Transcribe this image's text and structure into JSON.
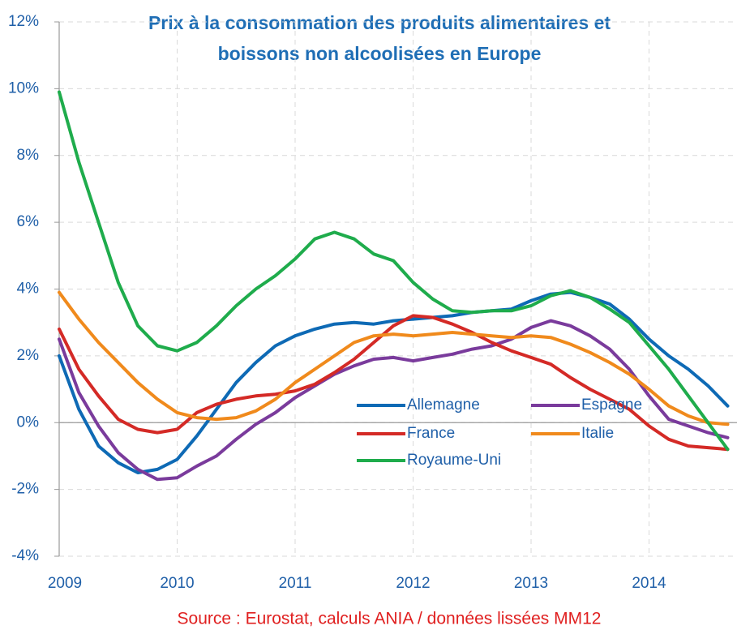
{
  "chart_data": {
    "type": "line",
    "title": [
      "Prix à la consommation des produits alimentaires et",
      "boissons non alcoolisées en Europe"
    ],
    "source": "Source : Eurostat, calculs ANIA / données lissées MM12",
    "x": [
      2009,
      2009.167,
      2009.333,
      2009.5,
      2009.667,
      2009.833,
      2010,
      2010.167,
      2010.333,
      2010.5,
      2010.667,
      2010.833,
      2011,
      2011.167,
      2011.333,
      2011.5,
      2011.667,
      2011.833,
      2012,
      2012.167,
      2012.333,
      2012.5,
      2012.667,
      2012.833,
      2013,
      2013.167,
      2013.333,
      2013.5,
      2013.667,
      2013.833,
      2014,
      2014.167,
      2014.333,
      2014.5,
      2014.667
    ],
    "series": [
      {
        "name": "Allemagne",
        "color": "#0e6ab5",
        "values": [
          2.0,
          0.4,
          -0.7,
          -1.2,
          -1.5,
          -1.4,
          -1.1,
          -0.4,
          0.4,
          1.2,
          1.8,
          2.3,
          2.6,
          2.8,
          2.95,
          3.0,
          2.95,
          3.05,
          3.1,
          3.15,
          3.2,
          3.3,
          3.35,
          3.4,
          3.65,
          3.85,
          3.9,
          3.75,
          3.55,
          3.1,
          2.5,
          2.0,
          1.6,
          1.1,
          0.5
        ]
      },
      {
        "name": "Espagne",
        "color": "#7a3b9c",
        "values": [
          2.5,
          0.9,
          -0.1,
          -0.9,
          -1.4,
          -1.7,
          -1.65,
          -1.3,
          -1.0,
          -0.5,
          -0.05,
          0.3,
          0.75,
          1.1,
          1.45,
          1.7,
          1.9,
          1.95,
          1.85,
          1.95,
          2.05,
          2.2,
          2.3,
          2.5,
          2.85,
          3.05,
          2.9,
          2.6,
          2.2,
          1.6,
          0.8,
          0.1,
          -0.1,
          -0.3,
          -0.45
        ]
      },
      {
        "name": "France",
        "color": "#d42a26",
        "values": [
          2.8,
          1.6,
          0.8,
          0.1,
          -0.2,
          -0.3,
          -0.2,
          0.3,
          0.55,
          0.7,
          0.8,
          0.85,
          0.95,
          1.15,
          1.5,
          1.9,
          2.4,
          2.9,
          3.2,
          3.15,
          2.95,
          2.7,
          2.4,
          2.15,
          1.95,
          1.75,
          1.35,
          1.0,
          0.7,
          0.4,
          -0.1,
          -0.5,
          -0.7,
          -0.75,
          -0.8
        ]
      },
      {
        "name": "Italie",
        "color": "#f08a1c",
        "values": [
          3.9,
          3.1,
          2.4,
          1.8,
          1.2,
          0.7,
          0.3,
          0.15,
          0.1,
          0.15,
          0.35,
          0.7,
          1.2,
          1.6,
          2.0,
          2.4,
          2.6,
          2.65,
          2.6,
          2.65,
          2.7,
          2.65,
          2.6,
          2.55,
          2.6,
          2.55,
          2.35,
          2.1,
          1.8,
          1.45,
          1.0,
          0.5,
          0.2,
          0.0,
          -0.05
        ]
      },
      {
        "name": "Royaume-Uni",
        "color": "#1fac4c",
        "values": [
          9.9,
          7.8,
          6.0,
          4.2,
          2.9,
          2.3,
          2.15,
          2.4,
          2.9,
          3.5,
          4.0,
          4.4,
          4.9,
          5.5,
          5.7,
          5.5,
          5.05,
          4.85,
          4.2,
          3.7,
          3.35,
          3.3,
          3.35,
          3.35,
          3.5,
          3.8,
          3.95,
          3.75,
          3.4,
          3.0,
          2.3,
          1.6,
          0.8,
          0.0,
          -0.8
        ]
      }
    ],
    "xlim": [
      2009,
      2014.75
    ],
    "xticks": [
      2009,
      2010,
      2011,
      2012,
      2013,
      2014
    ],
    "ylim": [
      -4,
      12
    ],
    "yticks": [
      {
        "value": -4,
        "label": "-4%"
      },
      {
        "value": -2,
        "label": "-2%"
      },
      {
        "value": 0,
        "label": "0%"
      },
      {
        "value": 2,
        "label": "2%"
      },
      {
        "value": 4,
        "label": "4%"
      },
      {
        "value": 6,
        "label": "6%"
      },
      {
        "value": 8,
        "label": "8%"
      },
      {
        "value": 10,
        "label": "10%"
      },
      {
        "value": 12,
        "label": "12%"
      }
    ],
    "grid": true
  }
}
